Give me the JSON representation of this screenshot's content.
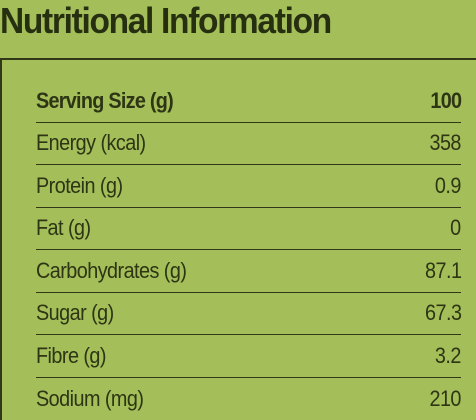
{
  "title": "Nutritional Information",
  "header": {
    "label": "Serving Size (g)",
    "value": "100"
  },
  "rows": [
    {
      "label": "Energy (kcal)",
      "value": "358"
    },
    {
      "label": "Protein (g)",
      "value": "0.9"
    },
    {
      "label": "Fat (g)",
      "value": "0"
    },
    {
      "label": "Carbohydrates (g)",
      "value": "87.1"
    },
    {
      "label": "Sugar (g)",
      "value": "67.3"
    },
    {
      "label": "Fibre (g)",
      "value": "3.2"
    },
    {
      "label": "Sodium (mg)",
      "value": "210"
    }
  ],
  "colors": {
    "background": "#a4be59",
    "text": "#2c3413",
    "border": "#303817"
  }
}
